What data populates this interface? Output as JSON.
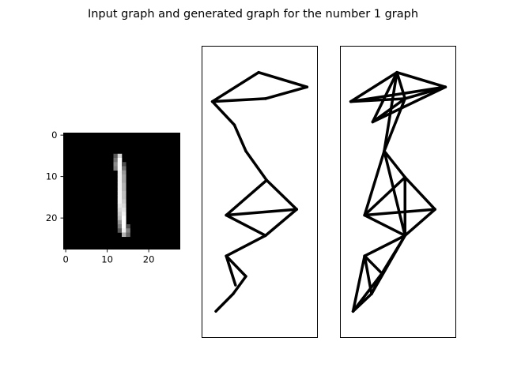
{
  "figure": {
    "title": "Input graph and generated graph for the number 1 graph"
  },
  "chart_data": [
    {
      "type": "heatmap",
      "colormap": "gray",
      "x_ticks": [
        0,
        10,
        20
      ],
      "y_ticks": [
        0,
        10,
        20
      ],
      "xlim": [
        -0.5,
        27.5
      ],
      "ylim": [
        27.5,
        -0.5
      ],
      "size": [
        28,
        28
      ],
      "background_value": 0,
      "pixels": [
        [
          5,
          12,
          0.35
        ],
        [
          5,
          13,
          0.85
        ],
        [
          6,
          12,
          0.45
        ],
        [
          6,
          13,
          1.0
        ],
        [
          7,
          12,
          0.55
        ],
        [
          7,
          13,
          1.0
        ],
        [
          7,
          14,
          0.3
        ],
        [
          8,
          12,
          0.5
        ],
        [
          8,
          13,
          1.0
        ],
        [
          8,
          14,
          0.45
        ],
        [
          9,
          13,
          0.95
        ],
        [
          9,
          14,
          0.6
        ],
        [
          10,
          13,
          0.95
        ],
        [
          10,
          14,
          0.65
        ],
        [
          11,
          13,
          0.95
        ],
        [
          11,
          14,
          0.65
        ],
        [
          12,
          13,
          0.95
        ],
        [
          12,
          14,
          0.7
        ],
        [
          13,
          13,
          0.95
        ],
        [
          13,
          14,
          0.7
        ],
        [
          14,
          13,
          0.95
        ],
        [
          14,
          14,
          0.75
        ],
        [
          15,
          13,
          0.95
        ],
        [
          15,
          14,
          0.75
        ],
        [
          16,
          13,
          0.95
        ],
        [
          16,
          14,
          0.8
        ],
        [
          17,
          13,
          0.9
        ],
        [
          17,
          14,
          0.85
        ],
        [
          18,
          13,
          0.85
        ],
        [
          18,
          14,
          0.9
        ],
        [
          19,
          13,
          0.8
        ],
        [
          19,
          14,
          0.95
        ],
        [
          20,
          13,
          0.75
        ],
        [
          20,
          14,
          1.0
        ],
        [
          21,
          13,
          0.6
        ],
        [
          21,
          14,
          1.0
        ],
        [
          22,
          13,
          0.5
        ],
        [
          22,
          14,
          1.0
        ],
        [
          22,
          15,
          0.3
        ],
        [
          23,
          13,
          0.35
        ],
        [
          23,
          14,
          0.95
        ],
        [
          23,
          15,
          0.5
        ],
        [
          24,
          14,
          0.7
        ],
        [
          24,
          15,
          0.4
        ]
      ]
    },
    {
      "type": "graph",
      "name": "input-graph",
      "xlim": [
        0,
        1
      ],
      "ylim": [
        0,
        1
      ],
      "nodes": [
        [
          0.49,
          0.91
        ],
        [
          0.91,
          0.86
        ],
        [
          0.09,
          0.81
        ],
        [
          0.55,
          0.82
        ],
        [
          0.28,
          0.73
        ],
        [
          0.38,
          0.64
        ],
        [
          0.56,
          0.54
        ],
        [
          0.82,
          0.44
        ],
        [
          0.21,
          0.42
        ],
        [
          0.55,
          0.35
        ],
        [
          0.21,
          0.28
        ],
        [
          0.38,
          0.21
        ],
        [
          0.27,
          0.15
        ],
        [
          0.29,
          0.18
        ],
        [
          0.12,
          0.09
        ]
      ],
      "edges": [
        [
          0,
          1
        ],
        [
          1,
          3
        ],
        [
          3,
          2
        ],
        [
          2,
          0
        ],
        [
          2,
          4
        ],
        [
          4,
          5
        ],
        [
          5,
          6
        ],
        [
          6,
          7
        ],
        [
          6,
          8
        ],
        [
          8,
          7
        ],
        [
          8,
          9
        ],
        [
          7,
          9
        ],
        [
          9,
          10
        ],
        [
          10,
          11
        ],
        [
          11,
          12
        ],
        [
          10,
          13
        ],
        [
          12,
          14
        ]
      ]
    },
    {
      "type": "graph",
      "name": "generated-graph",
      "xlim": [
        0,
        1
      ],
      "ylim": [
        0,
        1
      ],
      "nodes": [
        [
          0.49,
          0.91
        ],
        [
          0.91,
          0.86
        ],
        [
          0.09,
          0.81
        ],
        [
          0.56,
          0.82
        ],
        [
          0.28,
          0.74
        ],
        [
          0.38,
          0.64
        ],
        [
          0.56,
          0.55
        ],
        [
          0.82,
          0.44
        ],
        [
          0.21,
          0.42
        ],
        [
          0.56,
          0.35
        ],
        [
          0.21,
          0.28
        ],
        [
          0.36,
          0.22
        ],
        [
          0.27,
          0.15
        ],
        [
          0.11,
          0.09
        ]
      ],
      "edges": [
        [
          0,
          1
        ],
        [
          0,
          2
        ],
        [
          0,
          3
        ],
        [
          0,
          4
        ],
        [
          2,
          1
        ],
        [
          2,
          3
        ],
        [
          3,
          1
        ],
        [
          4,
          1
        ],
        [
          4,
          3
        ],
        [
          0,
          5
        ],
        [
          3,
          5
        ],
        [
          5,
          6
        ],
        [
          5,
          8
        ],
        [
          5,
          9
        ],
        [
          6,
          7
        ],
        [
          6,
          8
        ],
        [
          6,
          9
        ],
        [
          8,
          7
        ],
        [
          8,
          9
        ],
        [
          7,
          9
        ],
        [
          9,
          10
        ],
        [
          9,
          11
        ],
        [
          9,
          12
        ],
        [
          10,
          11
        ],
        [
          10,
          12
        ],
        [
          10,
          13
        ],
        [
          11,
          12
        ],
        [
          11,
          13
        ],
        [
          12,
          13
        ]
      ]
    }
  ]
}
